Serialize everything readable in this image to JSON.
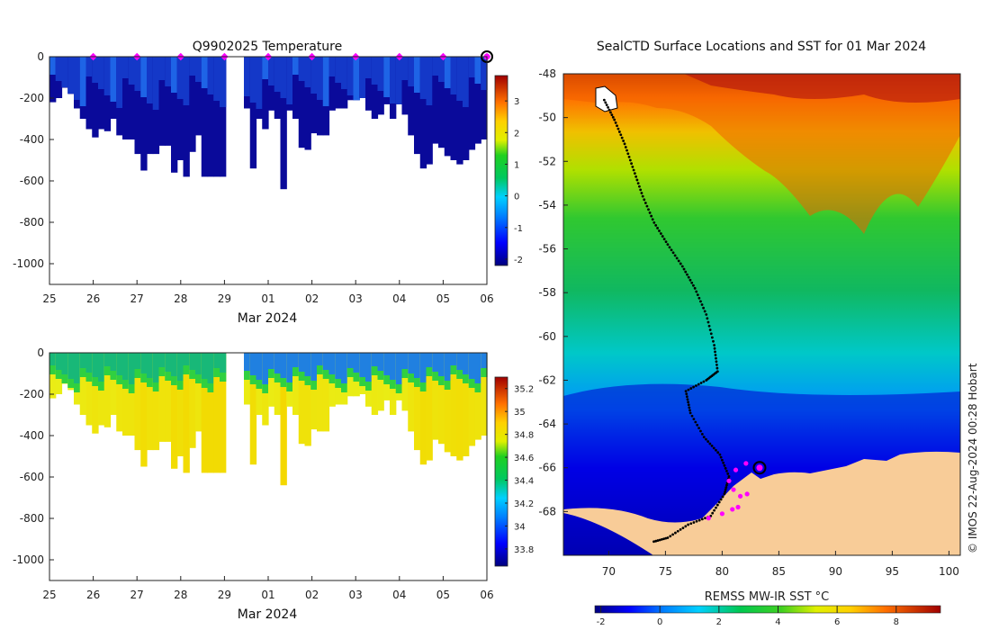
{
  "chart_data": [
    {
      "type": "heatmap",
      "panel": "top-left",
      "title": "Q9902025  Temperature",
      "xlabel": "Mar 2024",
      "x_ticks": [
        "25",
        "26",
        "27",
        "28",
        "29",
        "01",
        "02",
        "03",
        "04",
        "05",
        "06"
      ],
      "x_range_days": [
        0,
        10
      ],
      "y_ticks": [
        0,
        -200,
        -400,
        -600,
        -800,
        -1000
      ],
      "ylim": [
        -1100,
        0
      ],
      "colorbar_ticks": [
        3,
        2,
        1,
        0,
        -1,
        -2
      ],
      "colorbar_range": [
        -2.2,
        3.8
      ],
      "colorbar_units": "°C",
      "profile_max_depth_m": [
        220,
        200,
        150,
        180,
        250,
        300,
        350,
        390,
        350,
        360,
        300,
        380,
        400,
        400,
        470,
        550,
        470,
        470,
        430,
        430,
        560,
        500,
        580,
        460,
        380,
        580,
        580,
        580,
        580,
        null,
        null,
        null,
        250,
        540,
        300,
        350,
        260,
        300,
        640,
        260,
        300,
        440,
        450,
        370,
        380,
        380,
        260,
        250,
        250,
        210,
        210,
        200,
        260,
        300,
        280,
        230,
        300,
        230,
        280,
        380,
        470,
        540,
        520,
        420,
        440,
        480,
        500,
        520,
        500,
        450,
        420,
        400
      ],
      "markers_days": [
        1,
        2,
        3,
        4,
        5,
        6,
        7,
        8,
        9,
        10
      ],
      "final_marker_day": 10,
      "marker_color": "#ff00ff"
    },
    {
      "type": "heatmap",
      "panel": "bottom-left",
      "title": "",
      "xlabel": "Mar 2024",
      "x_ticks": [
        "25",
        "26",
        "27",
        "28",
        "29",
        "01",
        "02",
        "03",
        "04",
        "05",
        "06"
      ],
      "x_range_days": [
        0,
        10
      ],
      "y_ticks": [
        0,
        -200,
        -400,
        -600,
        -800,
        -1000
      ],
      "ylim": [
        -1100,
        0
      ],
      "colorbar_ticks": [
        35.2,
        35,
        34.8,
        34.6,
        34.4,
        34.2,
        34,
        33.8
      ],
      "colorbar_range": [
        33.65,
        35.3
      ],
      "variable": "salinity"
    },
    {
      "type": "heatmap",
      "panel": "right",
      "title": "SealCTD Surface Locations and SST for 01 Mar 2024",
      "x_ticks": [
        70,
        75,
        80,
        85,
        90,
        95,
        100
      ],
      "xlim": [
        66,
        101
      ],
      "y_ticks": [
        -48,
        -50,
        -52,
        -54,
        -56,
        -58,
        -60,
        -62,
        -64,
        -66,
        -68
      ],
      "ylim": [
        -70,
        -48
      ],
      "colorbar_label": "REMSS MW-IR SST °C",
      "colorbar_ticks": [
        -2,
        0,
        2,
        4,
        6,
        8
      ],
      "colorbar_range": [
        -2.2,
        9.5
      ],
      "land_color": "#f8cc98",
      "track": [
        [
          69.6,
          -49.2
        ],
        [
          70.5,
          -50.1
        ],
        [
          71.4,
          -51.2
        ],
        [
          72.2,
          -52.4
        ],
        [
          73.0,
          -53.6
        ],
        [
          74.0,
          -54.8
        ],
        [
          75.2,
          -55.8
        ],
        [
          76.5,
          -56.8
        ],
        [
          77.6,
          -57.8
        ],
        [
          78.6,
          -59.0
        ],
        [
          79.3,
          -60.4
        ],
        [
          79.6,
          -61.6
        ],
        [
          78.6,
          -62.0
        ],
        [
          76.8,
          -62.5
        ],
        [
          77.2,
          -63.5
        ],
        [
          78.4,
          -64.6
        ],
        [
          79.8,
          -65.4
        ],
        [
          80.6,
          -66.4
        ],
        [
          80.2,
          -67.2
        ],
        [
          79.0,
          -68.2
        ],
        [
          77.0,
          -68.6
        ],
        [
          75.2,
          -69.2
        ],
        [
          73.8,
          -69.4
        ]
      ],
      "surface_points": [
        [
          81.2,
          -66.1
        ],
        [
          80.6,
          -66.6
        ],
        [
          81.0,
          -67.0
        ],
        [
          81.6,
          -67.3
        ],
        [
          82.2,
          -67.2
        ],
        [
          81.4,
          -67.8
        ],
        [
          80.9,
          -67.9
        ],
        [
          80.0,
          -68.1
        ],
        [
          78.8,
          -68.3
        ],
        [
          82.1,
          -65.8
        ]
      ],
      "current_location": [
        83.3,
        -66.0
      ]
    }
  ],
  "watermark": "© IMOS 22-Aug-2024 00:28 Hobart"
}
